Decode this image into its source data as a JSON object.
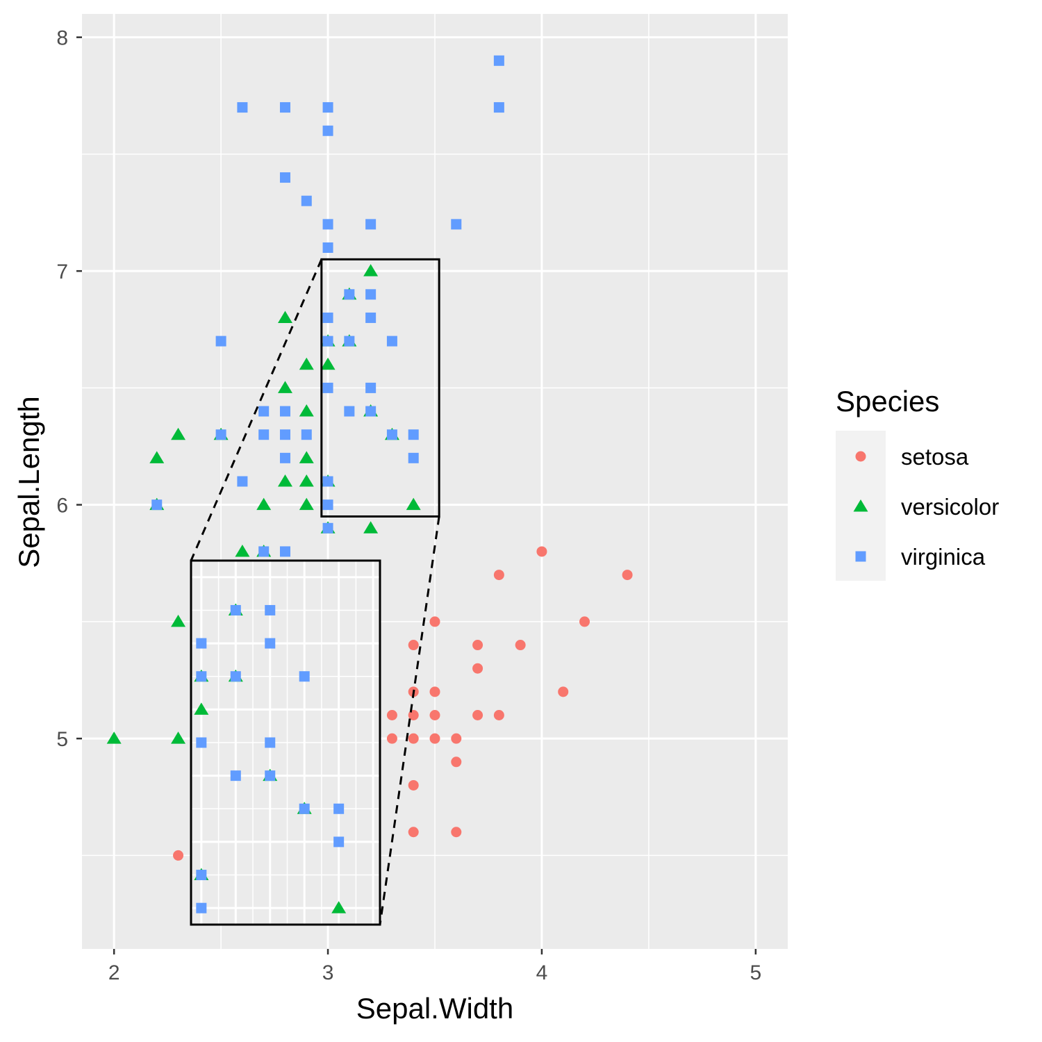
{
  "chart_data": {
    "type": "scatter",
    "xlabel": "Sepal.Width",
    "ylabel": "Sepal.Length",
    "xlim": [
      1.85,
      5.15
    ],
    "ylim": [
      4.1,
      8.1
    ],
    "x_ticks": [
      2,
      3,
      4,
      5
    ],
    "x_tick_labels": [
      "2",
      "3",
      "4",
      "5"
    ],
    "y_ticks": [
      5,
      6,
      7,
      8
    ],
    "y_tick_labels": [
      "5",
      "6",
      "7",
      "8"
    ],
    "grid": true,
    "legend": {
      "title": "Species",
      "placement": "right",
      "entries": [
        {
          "label": "setosa",
          "shape": "circle",
          "color": "#F8766D"
        },
        {
          "label": "versicolor",
          "shape": "triangle",
          "color": "#00BA38"
        },
        {
          "label": "virginica",
          "shape": "square",
          "color": "#619CFF"
        }
      ]
    },
    "series": [
      {
        "name": "setosa",
        "shape": "circle",
        "color": "#F8766D",
        "points": [
          [
            3.3,
            5.1
          ],
          [
            3.3,
            5.0
          ],
          [
            3.4,
            5.4
          ],
          [
            3.4,
            5.2
          ],
          [
            3.4,
            5.1
          ],
          [
            3.4,
            5.0
          ],
          [
            3.4,
            4.8
          ],
          [
            3.4,
            4.6
          ],
          [
            3.5,
            5.5
          ],
          [
            3.5,
            5.2
          ],
          [
            3.5,
            5.1
          ],
          [
            3.5,
            5.0
          ],
          [
            3.6,
            5.0
          ],
          [
            3.6,
            4.9
          ],
          [
            3.6,
            4.6
          ],
          [
            3.7,
            5.4
          ],
          [
            3.7,
            5.3
          ],
          [
            3.7,
            5.1
          ],
          [
            3.8,
            5.7
          ],
          [
            3.8,
            5.1
          ],
          [
            3.9,
            5.4
          ],
          [
            4.0,
            5.8
          ],
          [
            4.1,
            5.2
          ],
          [
            4.2,
            5.5
          ],
          [
            4.4,
            5.7
          ],
          [
            2.3,
            4.5
          ]
        ]
      },
      {
        "name": "versicolor",
        "shape": "triangle",
        "color": "#00BA38",
        "points": [
          [
            2.0,
            5.0
          ],
          [
            2.2,
            6.2
          ],
          [
            2.2,
            6.0
          ],
          [
            2.3,
            6.3
          ],
          [
            2.3,
            5.5
          ],
          [
            2.3,
            5.0
          ],
          [
            2.5,
            6.3
          ],
          [
            2.6,
            5.8
          ],
          [
            2.7,
            6.0
          ],
          [
            2.7,
            5.8
          ],
          [
            2.8,
            6.8
          ],
          [
            2.8,
            6.5
          ],
          [
            2.8,
            6.1
          ],
          [
            2.9,
            6.6
          ],
          [
            2.9,
            6.4
          ],
          [
            2.9,
            6.2
          ],
          [
            2.9,
            6.1
          ],
          [
            2.9,
            6.0
          ],
          [
            3.0,
            6.7
          ],
          [
            3.0,
            6.6
          ],
          [
            3.0,
            6.1
          ],
          [
            3.0,
            5.9
          ],
          [
            3.1,
            6.9
          ],
          [
            3.1,
            6.7
          ],
          [
            3.2,
            7.0
          ],
          [
            3.2,
            6.4
          ],
          [
            3.2,
            5.9
          ],
          [
            3.3,
            6.3
          ],
          [
            3.4,
            6.0
          ]
        ]
      },
      {
        "name": "virginica",
        "shape": "square",
        "color": "#619CFF",
        "points": [
          [
            2.2,
            6.0
          ],
          [
            2.5,
            6.7
          ],
          [
            2.5,
            6.3
          ],
          [
            2.6,
            7.7
          ],
          [
            2.6,
            6.1
          ],
          [
            2.7,
            6.4
          ],
          [
            2.7,
            6.3
          ],
          [
            2.7,
            5.8
          ],
          [
            2.8,
            7.7
          ],
          [
            2.8,
            7.4
          ],
          [
            2.8,
            6.4
          ],
          [
            2.8,
            6.3
          ],
          [
            2.8,
            6.2
          ],
          [
            2.8,
            5.8
          ],
          [
            2.9,
            7.3
          ],
          [
            2.9,
            6.3
          ],
          [
            3.0,
            7.7
          ],
          [
            3.0,
            7.6
          ],
          [
            3.0,
            7.2
          ],
          [
            3.0,
            7.1
          ],
          [
            3.0,
            6.8
          ],
          [
            3.0,
            6.7
          ],
          [
            3.0,
            6.5
          ],
          [
            3.0,
            6.1
          ],
          [
            3.0,
            6.0
          ],
          [
            3.0,
            5.9
          ],
          [
            3.1,
            6.9
          ],
          [
            3.1,
            6.7
          ],
          [
            3.1,
            6.4
          ],
          [
            3.2,
            7.2
          ],
          [
            3.2,
            6.9
          ],
          [
            3.2,
            6.8
          ],
          [
            3.2,
            6.5
          ],
          [
            3.2,
            6.4
          ],
          [
            3.3,
            6.7
          ],
          [
            3.3,
            6.3
          ],
          [
            3.4,
            6.3
          ],
          [
            3.4,
            6.2
          ],
          [
            3.6,
            7.2
          ],
          [
            3.8,
            7.9
          ],
          [
            3.8,
            7.7
          ]
        ]
      }
    ],
    "zoom_box": {
      "xlim": [
        2.97,
        3.52
      ],
      "ylim": [
        5.95,
        7.05
      ]
    },
    "zoom_inset": {
      "points": [
        {
          "shape": "square",
          "x": 3.0,
          "y": 6.8
        },
        {
          "shape": "triangle",
          "x": 3.0,
          "y": 6.7
        },
        {
          "shape": "square",
          "x": 3.0,
          "y": 6.7
        },
        {
          "shape": "triangle",
          "x": 3.0,
          "y": 6.6
        },
        {
          "shape": "square",
          "x": 3.0,
          "y": 6.5
        },
        {
          "shape": "triangle",
          "x": 3.0,
          "y": 6.1
        },
        {
          "shape": "square",
          "x": 3.0,
          "y": 6.1
        },
        {
          "shape": "square",
          "x": 3.0,
          "y": 6.0
        },
        {
          "shape": "triangle",
          "x": 3.1,
          "y": 6.9
        },
        {
          "shape": "square",
          "x": 3.1,
          "y": 6.9
        },
        {
          "shape": "triangle",
          "x": 3.1,
          "y": 6.7
        },
        {
          "shape": "square",
          "x": 3.1,
          "y": 6.7
        },
        {
          "shape": "square",
          "x": 3.1,
          "y": 6.4
        },
        {
          "shape": "square",
          "x": 3.2,
          "y": 6.9
        },
        {
          "shape": "square",
          "x": 3.2,
          "y": 6.8
        },
        {
          "shape": "square",
          "x": 3.2,
          "y": 6.5
        },
        {
          "shape": "triangle",
          "x": 3.2,
          "y": 6.4
        },
        {
          "shape": "square",
          "x": 3.2,
          "y": 6.4
        },
        {
          "shape": "square",
          "x": 3.3,
          "y": 6.7
        },
        {
          "shape": "triangle",
          "x": 3.3,
          "y": 6.3
        },
        {
          "shape": "square",
          "x": 3.3,
          "y": 6.3
        },
        {
          "shape": "square",
          "x": 3.4,
          "y": 6.3
        },
        {
          "shape": "square",
          "x": 3.4,
          "y": 6.2
        },
        {
          "shape": "triangle",
          "x": 3.4,
          "y": 6.0
        }
      ]
    }
  }
}
